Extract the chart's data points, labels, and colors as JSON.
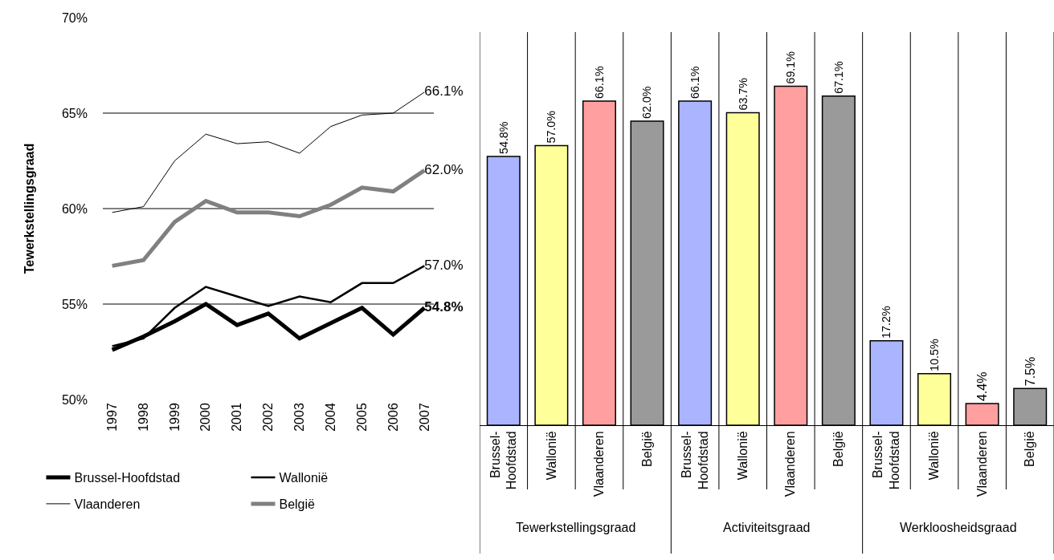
{
  "chart_data": [
    {
      "type": "line",
      "ylabel": "Tewerkstellingsgraad",
      "categories": [
        "1997",
        "1998",
        "1999",
        "2000",
        "2001",
        "2002",
        "2003",
        "2004",
        "2005",
        "2006",
        "2007"
      ],
      "ylim": [
        50,
        70
      ],
      "yticks": [
        {
          "value": 50,
          "label": "50%"
        },
        {
          "value": 55,
          "label": "55%"
        },
        {
          "value": 60,
          "label": "60%"
        },
        {
          "value": 65,
          "label": "65%"
        },
        {
          "value": 70,
          "label": "70%"
        }
      ],
      "grid": "y",
      "legend": "bottom",
      "marker": "none",
      "line_style": "solid",
      "series": [
        {
          "name": "Brussel-Hoofdstad",
          "color": "#000000",
          "values": [
            52.6,
            53.3,
            54.1,
            55.0,
            53.9,
            54.5,
            53.2,
            54.0,
            54.8,
            53.4,
            54.8
          ],
          "value_labels": [
            null,
            null,
            null,
            null,
            null,
            null,
            null,
            null,
            null,
            null,
            "54.8%"
          ]
        },
        {
          "name": "Wallonië",
          "color": "#000000",
          "values": [
            52.8,
            53.2,
            54.8,
            55.9,
            55.4,
            54.9,
            55.4,
            55.1,
            56.1,
            56.1,
            57.0
          ],
          "value_labels": [
            null,
            null,
            null,
            null,
            null,
            null,
            null,
            null,
            null,
            null,
            "57.0%"
          ]
        },
        {
          "name": "Vlaanderen",
          "color": "#000000",
          "values": [
            59.8,
            60.1,
            62.5,
            63.9,
            63.4,
            63.5,
            62.9,
            64.3,
            64.9,
            65.0,
            66.1
          ],
          "value_labels": [
            null,
            null,
            null,
            null,
            null,
            null,
            null,
            null,
            null,
            null,
            "66.1%"
          ]
        },
        {
          "name": "België",
          "color": "#808080",
          "values": [
            57.0,
            57.3,
            59.3,
            60.4,
            59.8,
            59.8,
            59.6,
            60.2,
            61.1,
            60.9,
            62.0
          ],
          "value_labels": [
            null,
            null,
            null,
            null,
            null,
            null,
            null,
            null,
            null,
            null,
            "62.0%"
          ]
        }
      ]
    },
    {
      "type": "bar",
      "categories": [
        "Brussel-Hoofdstad",
        "Wallonië",
        "Vlaanderen",
        "België",
        "Brussel-Hoofdstad",
        "Wallonië",
        "Vlaanderen",
        "België",
        "Brussel-Hoofdstad",
        "Wallonië",
        "Vlaanderen",
        "België"
      ],
      "values": [
        54.8,
        57.0,
        66.1,
        62.0,
        66.1,
        63.7,
        69.1,
        67.1,
        17.2,
        10.5,
        4.4,
        7.5
      ],
      "value_labels": [
        "54.8%",
        "57.0%",
        "66.1%",
        "62.0%",
        "66.1%",
        "63.7%",
        "69.1%",
        "67.1%",
        "17.2%",
        "10.5%",
        "4.4%",
        "7.5%"
      ],
      "colors": [
        "#aab4ff",
        "#ffff99",
        "#ff9f9f",
        "#9a9a9a",
        "#aab4ff",
        "#ffff99",
        "#ff9f9f",
        "#9a9a9a",
        "#aab4ff",
        "#ffff99",
        "#ff9f9f",
        "#9a9a9a"
      ],
      "annotations": [
        "Tewerkstellingsgraad",
        "Activiteitsgraad",
        "Werkloosheidsgraad"
      ]
    }
  ]
}
